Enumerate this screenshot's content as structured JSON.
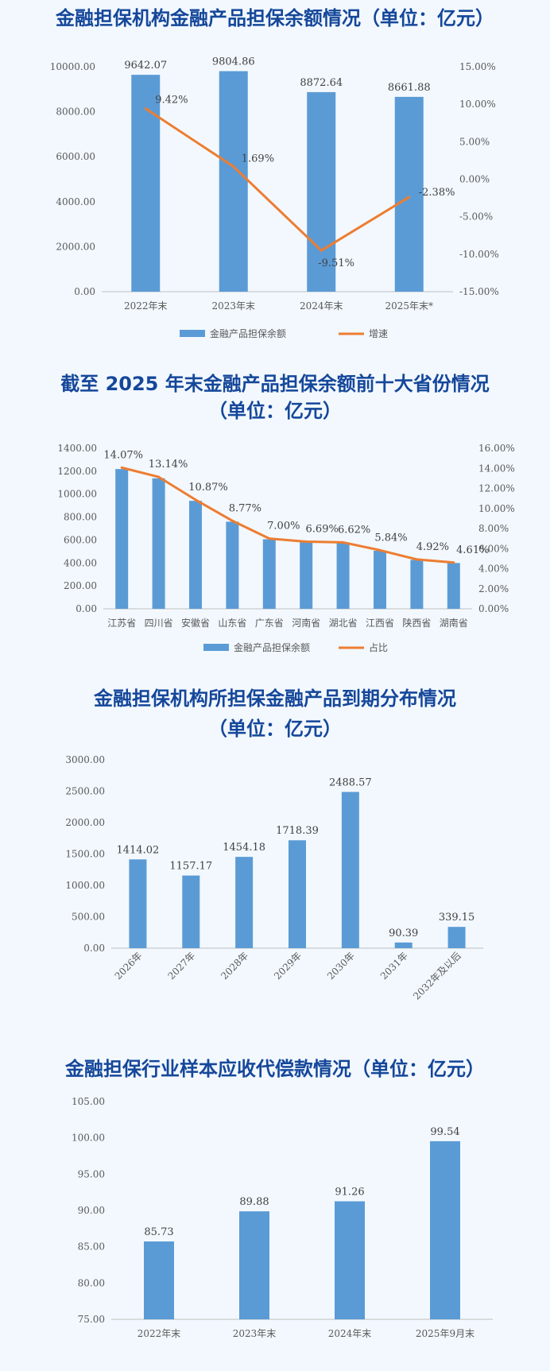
{
  "chart_data": [
    {
      "type": "bar",
      "title": "金融担保机构金融产品担保余额情况（单位：亿元）",
      "categories": [
        "2022年末",
        "2023年末",
        "2024年末",
        "2025年末*"
      ],
      "series": [
        {
          "name": "金融产品担保余额",
          "type": "bar",
          "axis": "left",
          "color": "#5b9bd5",
          "values": [
            9642.07,
            9804.86,
            8872.64,
            8661.88
          ],
          "labels": [
            "9642.07",
            "9804.86",
            "8872.64",
            "8661.88"
          ]
        },
        {
          "name": "增速",
          "type": "line",
          "axis": "right",
          "color": "#ed7d31",
          "values": [
            9.42,
            1.69,
            -9.51,
            -2.38
          ],
          "labels": [
            "9.42%",
            "1.69%",
            "-9.51%",
            "-2.38%"
          ]
        }
      ],
      "ylim": [
        0,
        10000
      ],
      "yticks": [
        "0.00",
        "2000.00",
        "4000.00",
        "6000.00",
        "8000.00",
        "10000.00"
      ],
      "y2lim": [
        -15,
        15
      ],
      "y2ticks": [
        "-15.00%",
        "-10.00%",
        "-5.00%",
        "0.00%",
        "5.00%",
        "10.00%",
        "15.00%"
      ],
      "grid": false,
      "legend": "bottom"
    },
    {
      "type": "bar",
      "title": "截至 2025 年末金融产品担保余额前十大省份情况（单位：亿元）",
      "title_lines": [
        "截至 2025 年末金融产品担保余额前十大省份情况",
        "（单位：亿元）"
      ],
      "categories": [
        "江苏省",
        "四川省",
        "安徽省",
        "山东省",
        "广东省",
        "河南省",
        "湖北省",
        "江西省",
        "陕西省",
        "湖南省"
      ],
      "series": [
        {
          "name": "金融产品担保余额",
          "type": "bar",
          "axis": "left",
          "color": "#5b9bd5",
          "values": [
            1218.7,
            1138.2,
            941.6,
            759.7,
            606.4,
            579.5,
            573.4,
            505.9,
            426.2,
            399.3
          ]
        },
        {
          "name": "占比",
          "type": "line",
          "axis": "right",
          "color": "#ed7d31",
          "values": [
            14.07,
            13.14,
            10.87,
            8.77,
            7.0,
            6.69,
            6.62,
            5.84,
            4.92,
            4.61
          ],
          "labels": [
            "14.07%",
            "13.14%",
            "10.87%",
            "8.77%",
            "7.00%",
            "6.69%",
            "6.62%",
            "5.84%",
            "4.92%",
            "4.61%"
          ]
        }
      ],
      "ylim": [
        0,
        1400
      ],
      "yticks": [
        "0.00",
        "200.00",
        "400.00",
        "600.00",
        "800.00",
        "1000.00",
        "1200.00",
        "1400.00"
      ],
      "y2lim": [
        0,
        16
      ],
      "y2ticks": [
        "0.00%",
        "2.00%",
        "4.00%",
        "6.00%",
        "8.00%",
        "10.00%",
        "12.00%",
        "14.00%",
        "16.00%"
      ],
      "grid": false,
      "legend": "bottom"
    },
    {
      "type": "bar",
      "title": "金融担保机构所担保金融产品到期分布情况（单位：亿元）",
      "title_lines": [
        "金融担保机构所担保金融产品到期分布情况",
        "（单位：亿元）"
      ],
      "categories": [
        "2026年",
        "2027年",
        "2028年",
        "2029年",
        "2030年",
        "2031年",
        "2032年及以后"
      ],
      "series": [
        {
          "type": "bar",
          "color": "#5b9bd5",
          "values": [
            1414.02,
            1157.17,
            1454.18,
            1718.39,
            2488.57,
            90.39,
            339.15
          ],
          "labels": [
            "1414.02",
            "1157.17",
            "1454.18",
            "1718.39",
            "2488.57",
            "90.39",
            "339.15"
          ]
        }
      ],
      "ylim": [
        0,
        3000
      ],
      "yticks": [
        "0.00",
        "500.00",
        "1000.00",
        "1500.00",
        "2000.00",
        "2500.00",
        "3000.00"
      ],
      "grid": false
    },
    {
      "type": "bar",
      "title": "金融担保行业样本应收代偿款情况（单位：亿元）",
      "categories": [
        "2022年末",
        "2023年末",
        "2024年末",
        "2025年9月末"
      ],
      "series": [
        {
          "type": "bar",
          "color": "#5b9bd5",
          "values": [
            85.73,
            89.88,
            91.26,
            99.54
          ],
          "labels": [
            "85.73",
            "89.88",
            "91.26",
            "99.54"
          ]
        }
      ],
      "ylim": [
        75,
        105
      ],
      "yticks": [
        "75.00",
        "80.00",
        "85.00",
        "90.00",
        "95.00",
        "100.00",
        "105.00"
      ],
      "grid": false
    }
  ]
}
